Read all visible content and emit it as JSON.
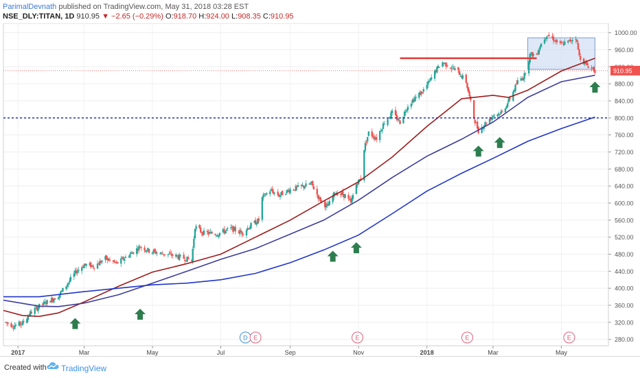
{
  "header": {
    "author": "ParimalDevnath",
    "published": "published on TradingView.com, May 31, 2018 03:28 EST",
    "symbol": "NSE_DLY:TITAN, 1D",
    "last": "910.95",
    "change": "▼ −2.65 (−0.29%)",
    "open_label": "O:",
    "open": "918.70",
    "high_label": "H:",
    "high": "924.00",
    "low_label": "L:",
    "low": "908.35",
    "close_label": "C:",
    "close": "910.95"
  },
  "footer": {
    "made_with": "Created with",
    "brand": "TradingView"
  },
  "colors": {
    "up": "#26a69a",
    "down": "#ef5350",
    "ma_fast": "#9e1b1b",
    "ma_mid": "#3c3c9c",
    "ma_slow": "#1f35c9",
    "resistance": "#e53935",
    "support": "#2233bb",
    "arrow": "#2e7d4f",
    "box": "#c9d8f0",
    "event_dividend": "#3d8fd6",
    "event_earnings": "#e0607a",
    "last_price_badge": "#ef5350"
  },
  "chart_data": {
    "type": "candlestick",
    "symbol": "NSE_DLY:TITAN",
    "interval": "1D",
    "ylim": [
      265,
      1022
    ],
    "y_ticks": [
      280,
      320,
      360,
      400,
      440,
      480,
      520,
      560,
      600,
      640,
      680,
      720,
      760,
      800,
      840,
      880,
      920,
      960,
      1000
    ],
    "y_tick_labels": [
      "280.00",
      "320.00",
      "360.00",
      "400.00",
      "440.00",
      "480.00",
      "520.00",
      "560.00",
      "600.00",
      "640.00",
      "680.00",
      "720.00",
      "760.00",
      "800.00",
      "840.00",
      "880.00",
      "920.00",
      "960.00",
      "1000.00"
    ],
    "last_price": 910.95,
    "last_price_label": "910.95",
    "x_axis": {
      "start": "2016-12-19",
      "end": "2018-06-12",
      "ticks": [
        {
          "date": "2017-01-01",
          "label": "2017"
        },
        {
          "date": "2017-03-01",
          "label": "Mar"
        },
        {
          "date": "2017-05-01",
          "label": "May"
        },
        {
          "date": "2017-07-01",
          "label": "Jul"
        },
        {
          "date": "2017-09-01",
          "label": "Sep"
        },
        {
          "date": "2017-11-01",
          "label": "Nov"
        },
        {
          "date": "2018-01-01",
          "label": "2018"
        },
        {
          "date": "2018-03-01",
          "label": "Mar"
        },
        {
          "date": "2018-05-01",
          "label": "May"
        }
      ]
    },
    "price_path": [
      [
        "2016-12-21",
        320
      ],
      [
        "2016-12-28",
        312
      ],
      [
        "2017-01-05",
        318
      ],
      [
        "2017-01-12",
        342
      ],
      [
        "2017-01-20",
        358
      ],
      [
        "2017-01-30",
        372
      ],
      [
        "2017-02-06",
        382
      ],
      [
        "2017-02-14",
        410
      ],
      [
        "2017-02-22",
        440
      ],
      [
        "2017-03-01",
        455
      ],
      [
        "2017-03-10",
        452
      ],
      [
        "2017-03-20",
        470
      ],
      [
        "2017-03-30",
        458
      ],
      [
        "2017-04-10",
        478
      ],
      [
        "2017-04-20",
        498
      ],
      [
        "2017-04-28",
        488
      ],
      [
        "2017-05-08",
        482
      ],
      [
        "2017-05-18",
        478
      ],
      [
        "2017-05-30",
        470
      ],
      [
        "2017-06-05",
        465
      ],
      [
        "2017-06-08",
        545
      ],
      [
        "2017-06-15",
        530
      ],
      [
        "2017-06-28",
        528
      ],
      [
        "2017-07-10",
        540
      ],
      [
        "2017-07-20",
        530
      ],
      [
        "2017-07-28",
        548
      ],
      [
        "2017-08-04",
        560
      ],
      [
        "2017-08-07",
        612
      ],
      [
        "2017-08-14",
        630
      ],
      [
        "2017-08-22",
        618
      ],
      [
        "2017-09-01",
        632
      ],
      [
        "2017-09-11",
        638
      ],
      [
        "2017-09-20",
        645
      ],
      [
        "2017-09-27",
        610
      ],
      [
        "2017-10-04",
        590
      ],
      [
        "2017-10-11",
        625
      ],
      [
        "2017-10-20",
        618
      ],
      [
        "2017-10-25",
        600
      ],
      [
        "2017-10-30",
        645
      ],
      [
        "2017-11-03",
        658
      ],
      [
        "2017-11-06",
        728
      ],
      [
        "2017-11-10",
        765
      ],
      [
        "2017-11-17",
        752
      ],
      [
        "2017-11-24",
        790
      ],
      [
        "2017-12-01",
        812
      ],
      [
        "2017-12-08",
        790
      ],
      [
        "2017-12-15",
        830
      ],
      [
        "2017-12-22",
        848
      ],
      [
        "2017-12-28",
        862
      ],
      [
        "2018-01-02",
        880
      ],
      [
        "2018-01-09",
        912
      ],
      [
        "2018-01-15",
        930
      ],
      [
        "2018-01-22",
        920
      ],
      [
        "2018-01-29",
        908
      ],
      [
        "2018-02-05",
        885
      ],
      [
        "2018-02-12",
        800
      ],
      [
        "2018-02-16",
        770
      ],
      [
        "2018-02-23",
        790
      ],
      [
        "2018-03-02",
        808
      ],
      [
        "2018-03-09",
        812
      ],
      [
        "2018-03-16",
        845
      ],
      [
        "2018-03-23",
        885
      ],
      [
        "2018-03-29",
        900
      ],
      [
        "2018-04-03",
        948
      ],
      [
        "2018-04-09",
        950
      ],
      [
        "2018-04-12",
        970
      ],
      [
        "2018-04-18",
        996
      ],
      [
        "2018-04-24",
        985
      ],
      [
        "2018-04-30",
        972
      ],
      [
        "2018-05-07",
        978
      ],
      [
        "2018-05-14",
        990
      ],
      [
        "2018-05-17",
        945
      ],
      [
        "2018-05-23",
        925
      ],
      [
        "2018-05-28",
        918
      ],
      [
        "2018-05-31",
        910.95
      ]
    ],
    "series": [
      {
        "kind": "moving-average",
        "color": "#9e1b1b",
        "values": [
          [
            "2016-12-19",
            348
          ],
          [
            "2017-01-05",
            336
          ],
          [
            "2017-01-20",
            334
          ],
          [
            "2017-02-06",
            342
          ],
          [
            "2017-03-01",
            368
          ],
          [
            "2017-04-01",
            405
          ],
          [
            "2017-05-01",
            438
          ],
          [
            "2017-06-01",
            458
          ],
          [
            "2017-07-01",
            480
          ],
          [
            "2017-08-01",
            520
          ],
          [
            "2017-09-01",
            560
          ],
          [
            "2017-10-01",
            605
          ],
          [
            "2017-11-01",
            650
          ],
          [
            "2017-12-01",
            708
          ],
          [
            "2018-01-01",
            780
          ],
          [
            "2018-02-01",
            845
          ],
          [
            "2018-03-01",
            853
          ],
          [
            "2018-03-15",
            848
          ],
          [
            "2018-04-01",
            865
          ],
          [
            "2018-05-01",
            910
          ],
          [
            "2018-05-31",
            940
          ]
        ]
      },
      {
        "kind": "moving-average",
        "color": "#3c3c9c",
        "values": [
          [
            "2016-12-19",
            372
          ],
          [
            "2017-01-20",
            358
          ],
          [
            "2017-02-06",
            357
          ],
          [
            "2017-03-01",
            365
          ],
          [
            "2017-04-01",
            385
          ],
          [
            "2017-05-01",
            412
          ],
          [
            "2017-06-01",
            440
          ],
          [
            "2017-07-01",
            468
          ],
          [
            "2017-08-01",
            493
          ],
          [
            "2017-09-01",
            527
          ],
          [
            "2017-10-01",
            560
          ],
          [
            "2017-11-01",
            607
          ],
          [
            "2017-12-01",
            660
          ],
          [
            "2018-01-01",
            710
          ],
          [
            "2018-02-01",
            750
          ],
          [
            "2018-03-01",
            790
          ],
          [
            "2018-04-01",
            848
          ],
          [
            "2018-05-01",
            885
          ],
          [
            "2018-05-31",
            900
          ]
        ]
      },
      {
        "kind": "moving-average",
        "color": "#1f35c9",
        "values": [
          [
            "2016-12-19",
            380
          ],
          [
            "2017-01-20",
            380
          ],
          [
            "2017-03-01",
            392
          ],
          [
            "2017-05-01",
            408
          ],
          [
            "2017-06-01",
            412
          ],
          [
            "2017-07-01",
            420
          ],
          [
            "2017-08-01",
            435
          ],
          [
            "2017-09-01",
            460
          ],
          [
            "2017-10-01",
            490
          ],
          [
            "2017-11-01",
            525
          ],
          [
            "2017-12-01",
            575
          ],
          [
            "2018-01-01",
            628
          ],
          [
            "2018-02-01",
            670
          ],
          [
            "2018-03-01",
            705
          ],
          [
            "2018-04-01",
            745
          ],
          [
            "2018-05-01",
            775
          ],
          [
            "2018-05-31",
            802
          ]
        ]
      }
    ],
    "annotations": {
      "support_line": 800,
      "resistance": {
        "price": 940,
        "from": "2017-12-08",
        "to": "2018-04-09"
      },
      "range_box": {
        "from": "2018-04-01",
        "to": "2018-05-31",
        "top": 988,
        "bottom": 914
      },
      "up_arrows": [
        {
          "date": "2017-02-21",
          "price": 330
        },
        {
          "date": "2017-04-20",
          "price": 352
        },
        {
          "date": "2017-10-09",
          "price": 488
        },
        {
          "date": "2017-10-30",
          "price": 508
        },
        {
          "date": "2018-02-16",
          "price": 735
        },
        {
          "date": "2018-03-07",
          "price": 755
        },
        {
          "date": "2018-05-31",
          "price": 885
        }
      ],
      "events": [
        {
          "date": "2017-07-23",
          "label": "D"
        },
        {
          "date": "2017-08-01",
          "label": "E"
        },
        {
          "date": "2017-10-31",
          "label": "E"
        },
        {
          "date": "2018-02-06",
          "label": "E"
        },
        {
          "date": "2018-05-08",
          "label": "E"
        }
      ]
    }
  }
}
